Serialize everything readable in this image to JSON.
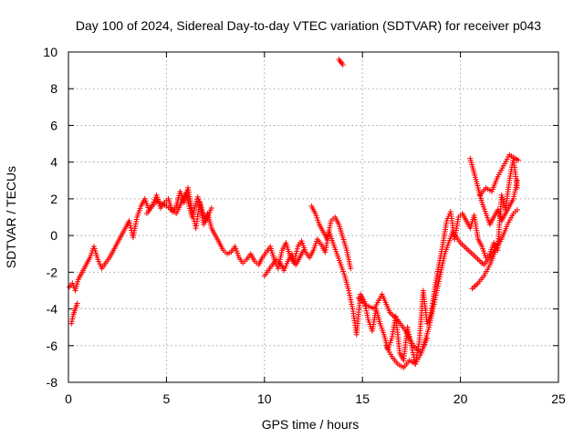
{
  "chart_data": {
    "type": "scatter",
    "title": "Day 100 of 2024, Sidereal Day-to-day VTEC variation (SDTVAR) for receiver p043",
    "xlabel": "GPS time / hours",
    "ylabel": "SDTVAR / TECUs",
    "xlim": [
      0,
      25
    ],
    "ylim": [
      -8,
      10
    ],
    "xticks": [
      0,
      5,
      10,
      15,
      20,
      25
    ],
    "yticks": [
      -8,
      -6,
      -4,
      -2,
      0,
      2,
      4,
      6,
      8,
      10
    ],
    "grid": true,
    "marker": "+",
    "color": "#ff0000",
    "series": [
      {
        "x": [
          0.05,
          0.2,
          0.35,
          0.5,
          0.7,
          0.9,
          1.1,
          1.3,
          1.5,
          1.7,
          1.9,
          2.1,
          2.3,
          2.5,
          2.7,
          2.9,
          3.1,
          3.3,
          3.5,
          3.7,
          3.9,
          4.1,
          4.3,
          4.5,
          4.7,
          4.9,
          5.1,
          5.3,
          5.5,
          5.7,
          5.9,
          6.1,
          6.3,
          6.5,
          6.7,
          6.9,
          7.1,
          7.3,
          7.5,
          7.7,
          7.9,
          8.1,
          8.3,
          8.5,
          8.7,
          8.9,
          9.1,
          9.3,
          9.5,
          9.7,
          9.9,
          10.1,
          10.3,
          10.5,
          10.7,
          10.9,
          11.1,
          11.3,
          11.5,
          11.7,
          11.9,
          12.1,
          12.3,
          12.5,
          12.7,
          12.9,
          13.1,
          13.3,
          13.5,
          13.7,
          13.9,
          14.1,
          14.3,
          14.5,
          14.7,
          14.9,
          15.1,
          15.3,
          15.5,
          15.7,
          15.9,
          16.1,
          16.3,
          16.5,
          16.7,
          16.9,
          17.1,
          17.3,
          17.5,
          17.7,
          17.9,
          18.1,
          18.3,
          18.5,
          18.7,
          18.9,
          19.1,
          19.3,
          19.5,
          19.7,
          19.9,
          20.1,
          20.3,
          20.5,
          20.7,
          20.9,
          21.1,
          21.3,
          21.5,
          21.7,
          21.9,
          22.1,
          22.3,
          22.5,
          22.7,
          22.9
        ],
        "y": [
          -2.8,
          -2.6,
          -3.0,
          -2.4,
          -2.0,
          -1.6,
          -1.2,
          -0.6,
          -1.3,
          -1.8,
          -1.5,
          -1.2,
          -0.8,
          -0.4,
          0.0,
          0.4,
          0.8,
          -0.1,
          1.0,
          1.6,
          2.0,
          1.4,
          1.7,
          2.2,
          1.5,
          1.8,
          2.0,
          1.3,
          1.6,
          2.4,
          1.8,
          2.6,
          1.4,
          0.4,
          1.8,
          0.6,
          1.2,
          0.4,
          0.0,
          -0.4,
          -0.8,
          -1.0,
          -0.9,
          -0.6,
          -1.2,
          -1.5,
          -1.3,
          -1.0,
          -1.4,
          -1.6,
          -1.2,
          -0.9,
          -0.6,
          -1.3,
          -1.8,
          -0.8,
          -0.4,
          -1.1,
          -1.5,
          -0.6,
          -0.3,
          -0.9,
          -1.2,
          -0.8,
          -0.2,
          -0.5,
          -0.9,
          0.2,
          -0.4,
          -1.0,
          -1.6,
          -2.2,
          -3.0,
          -4.0,
          -5.4,
          -3.2,
          -3.6,
          -4.6,
          -5.2,
          -4.0,
          -4.8,
          -5.4,
          -6.2,
          -5.6,
          -4.4,
          -6.4,
          -6.8,
          -5.0,
          -6.0,
          -7.0,
          -5.8,
          -3.0,
          -4.8,
          -4.2,
          -2.8,
          -1.6,
          -0.5,
          0.8,
          1.3,
          -0.2,
          1.0,
          1.2,
          0.8,
          0.4,
          1.1,
          -0.2,
          -0.6,
          -1.2,
          -1.0,
          -0.4,
          -0.8,
          2.2,
          1.4,
          3.0,
          4.2,
          2.6
        ],
        "name": ""
      },
      {
        "x": [
          0.15,
          0.25,
          0.35,
          0.45
        ],
        "y": [
          -4.8,
          -4.3,
          -4.0,
          -3.7
        ],
        "name": ""
      },
      {
        "x": [
          4.0,
          4.5,
          5.0,
          5.5,
          6.0,
          6.3,
          6.6,
          7.0,
          7.3
        ],
        "y": [
          1.2,
          1.9,
          1.6,
          1.2,
          2.3,
          1.0,
          2.1,
          0.8,
          1.5
        ],
        "name": ""
      },
      {
        "x": [
          12.4,
          12.6,
          12.8,
          13.0,
          13.2,
          13.4,
          13.6,
          13.8,
          14.0,
          14.2,
          14.4
        ],
        "y": [
          1.6,
          1.2,
          0.6,
          0.2,
          -0.2,
          0.8,
          1.0,
          0.6,
          -0.1,
          -0.8,
          -1.8
        ],
        "name": ""
      },
      {
        "x": [
          13.8,
          13.85,
          13.9,
          13.95,
          14.0
        ],
        "y": [
          9.6,
          9.5,
          9.45,
          9.4,
          9.3
        ],
        "name": ""
      },
      {
        "x": [
          14.8,
          15.2,
          15.6,
          16.0,
          16.4,
          16.8,
          17.2,
          17.6,
          18.0,
          18.4,
          18.8,
          19.2,
          19.6,
          20.0,
          20.4,
          20.8,
          21.2,
          21.6,
          22.0
        ],
        "y": [
          -3.4,
          -3.8,
          -4.0,
          -3.2,
          -4.2,
          -4.6,
          -5.2,
          -6.0,
          -6.4,
          -5.0,
          -3.0,
          -1.0,
          0.2,
          -0.4,
          -0.8,
          -1.2,
          -1.6,
          -1.0,
          -0.2
        ],
        "name": ""
      },
      {
        "x": [
          16.2,
          16.5,
          16.8,
          17.1,
          17.4,
          17.7,
          18.0,
          18.3
        ],
        "y": [
          -6.0,
          -6.6,
          -7.0,
          -7.2,
          -6.8,
          -7.0,
          -6.4,
          -5.6
        ],
        "name": ""
      },
      {
        "x": [
          20.5,
          20.7,
          20.9,
          21.1,
          21.3,
          21.5,
          21.7,
          21.9,
          22.1,
          22.3,
          22.5,
          22.7,
          22.9
        ],
        "y": [
          4.2,
          3.4,
          2.6,
          1.8,
          1.2,
          0.6,
          1.0,
          1.4,
          0.8,
          1.2,
          1.6,
          2.0,
          3.0
        ],
        "name": ""
      },
      {
        "x": [
          20.6,
          20.9,
          21.2,
          21.5,
          21.8,
          22.1,
          22.4,
          22.7,
          22.9
        ],
        "y": [
          -2.9,
          -2.6,
          -2.2,
          -1.6,
          -0.8,
          -0.2,
          0.6,
          1.2,
          1.4
        ],
        "name": ""
      },
      {
        "x": [
          21.0,
          21.3,
          21.6,
          21.9,
          22.2,
          22.5,
          22.8,
          22.95
        ],
        "y": [
          2.2,
          2.6,
          2.4,
          3.2,
          3.8,
          4.4,
          4.2,
          4.1
        ],
        "name": ""
      },
      {
        "x": [
          10.0,
          10.2,
          10.4,
          10.6,
          10.8,
          11.0,
          11.2,
          11.4,
          11.6,
          11.8,
          12.0
        ],
        "y": [
          -2.2,
          -1.9,
          -1.6,
          -1.3,
          -1.5,
          -1.9,
          -1.4,
          -1.0,
          -1.6,
          -1.2,
          -0.8
        ],
        "name": ""
      }
    ]
  }
}
